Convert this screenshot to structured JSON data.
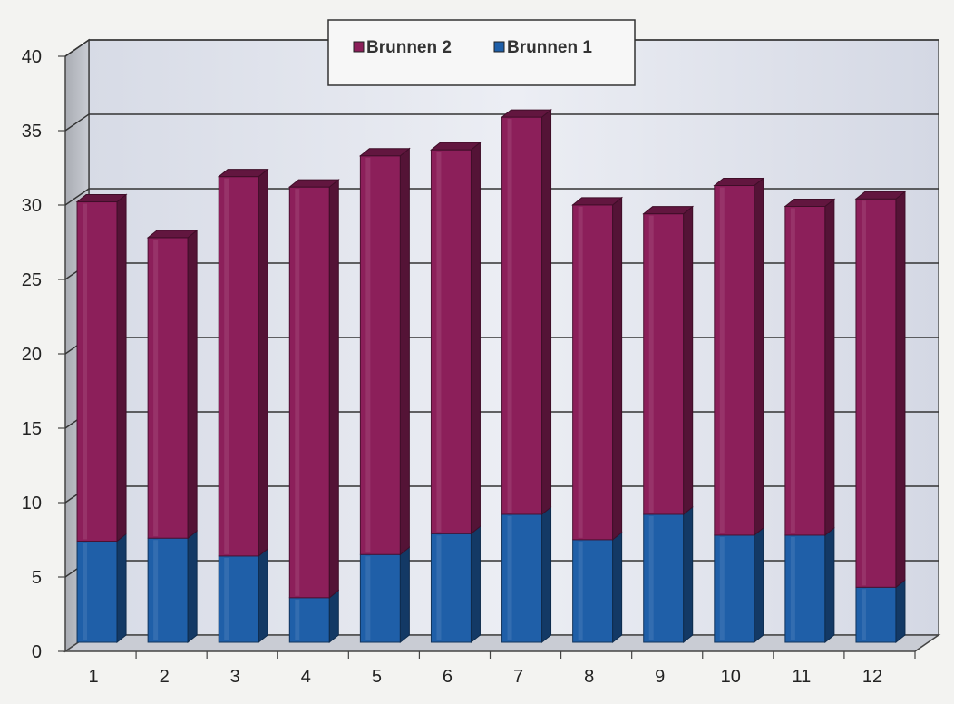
{
  "chart_data": {
    "type": "bar",
    "stacked": true,
    "style": "3d",
    "categories": [
      "1",
      "2",
      "3",
      "4",
      "5",
      "6",
      "7",
      "8",
      "9",
      "10",
      "11",
      "12"
    ],
    "series": [
      {
        "name": "Brunnen 1",
        "color": "#1f5fa8",
        "values": [
          6.8,
          7.0,
          5.8,
          3.0,
          5.9,
          7.3,
          8.6,
          6.9,
          8.6,
          7.2,
          7.2,
          3.7
        ]
      },
      {
        "name": "Brunnen 2",
        "color": "#8c1f5a",
        "values": [
          22.8,
          20.2,
          25.5,
          27.6,
          26.8,
          25.8,
          26.7,
          22.5,
          20.2,
          23.5,
          22.1,
          26.1
        ]
      }
    ],
    "legend": {
      "position": "top-center",
      "order": [
        "Brunnen 2",
        "Brunnen 1"
      ]
    },
    "ylim": [
      0,
      40
    ],
    "yticks": [
      0,
      5,
      10,
      15,
      20,
      25,
      30,
      35,
      40
    ],
    "grid": true
  }
}
